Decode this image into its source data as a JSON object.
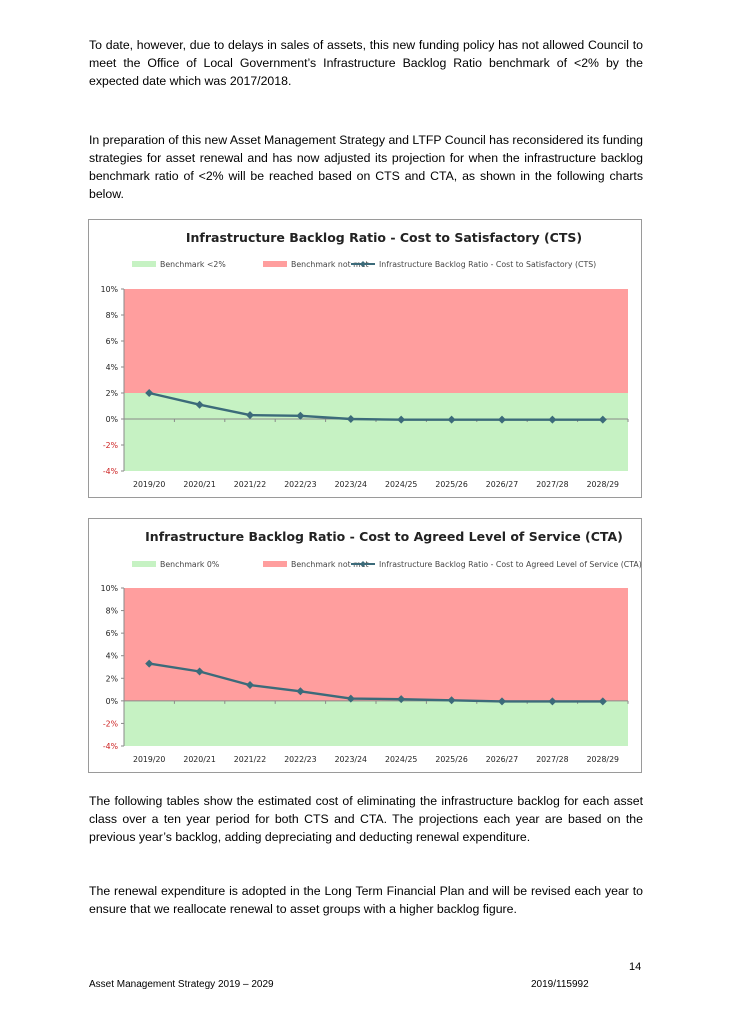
{
  "paragraphs": {
    "p1": "To date, however, due to delays in sales of assets, this new funding policy has not allowed Council to meet the Office of Local Government’s Infrastructure Backlog Ratio benchmark of <2% by the expected date which was 2017/2018.",
    "p2": "In preparation of this new Asset Management Strategy and LTFP Council has reconsidered its funding strategies for asset renewal and has now adjusted its projection for when the infrastructure backlog benchmark ratio of <2% will be reached based on CTS and CTA, as shown in the following charts below.",
    "p3": "The following tables show the estimated cost of eliminating the infrastructure backlog for each asset class over a ten year period for both CTS and CTA. The projections each year are based on the previous year’s backlog, adding depreciating and deducting renewal expenditure.",
    "p4": "The renewal expenditure is adopted in the Long Term Financial Plan and will be revised each year to ensure that we reallocate renewal to asset groups with a higher backlog figure."
  },
  "footer": {
    "page_number": "14",
    "document_title": "Asset Management Strategy 2019 – 2029",
    "reference": "2019/115992"
  },
  "colors": {
    "benchmark_met": "#c6f2c3",
    "benchmark_not_met": "#ff9e9e",
    "series_line": "#3c6b7a",
    "negative_tick": "#cc1f1f"
  },
  "chart_data": [
    {
      "type": "line",
      "title": "Infrastructure Backlog Ratio - Cost to Satisfactory (CTS)",
      "categories": [
        "2019/20",
        "2020/21",
        "2021/22",
        "2022/23",
        "2023/24",
        "2024/25",
        "2025/26",
        "2026/27",
        "2027/28",
        "2028/29"
      ],
      "ylim": [
        -4,
        10
      ],
      "yticks": [
        "10%",
        "8%",
        "6%",
        "4%",
        "2%",
        "0%",
        "-2%",
        "-4%"
      ],
      "benchmark_threshold": 2,
      "legend": [
        "Benchmark <2%",
        "Benchmark not met",
        "Infrastructure Backlog Ratio - Cost to Satisfactory (CTS)"
      ],
      "legend_position": "top",
      "series": [
        {
          "name": "Infrastructure Backlog Ratio - Cost to Satisfactory (CTS)",
          "values": [
            2.0,
            1.1,
            0.3,
            0.25,
            0.0,
            -0.05,
            -0.05,
            -0.05,
            -0.05,
            -0.05
          ]
        }
      ]
    },
    {
      "type": "line",
      "title": "Infrastructure Backlog Ratio - Cost to Agreed Level of Service (CTA)",
      "categories": [
        "2019/20",
        "2020/21",
        "2021/22",
        "2022/23",
        "2023/24",
        "2024/25",
        "2025/26",
        "2026/27",
        "2027/28",
        "2028/29"
      ],
      "ylim": [
        -4,
        10
      ],
      "yticks": [
        "10%",
        "8%",
        "6%",
        "4%",
        "2%",
        "0%",
        "-2%",
        "-4%"
      ],
      "benchmark_threshold": 0,
      "legend": [
        "Benchmark 0%",
        "Benchmark not met",
        "Infrastructure Backlog Ratio - Cost to Agreed Level of Service (CTA)"
      ],
      "legend_position": "top",
      "series": [
        {
          "name": "Infrastructure Backlog Ratio - Cost to Agreed Level of Service (CTA)",
          "values": [
            3.3,
            2.6,
            1.4,
            0.85,
            0.2,
            0.15,
            0.05,
            -0.05,
            -0.05,
            -0.05
          ]
        }
      ]
    }
  ]
}
